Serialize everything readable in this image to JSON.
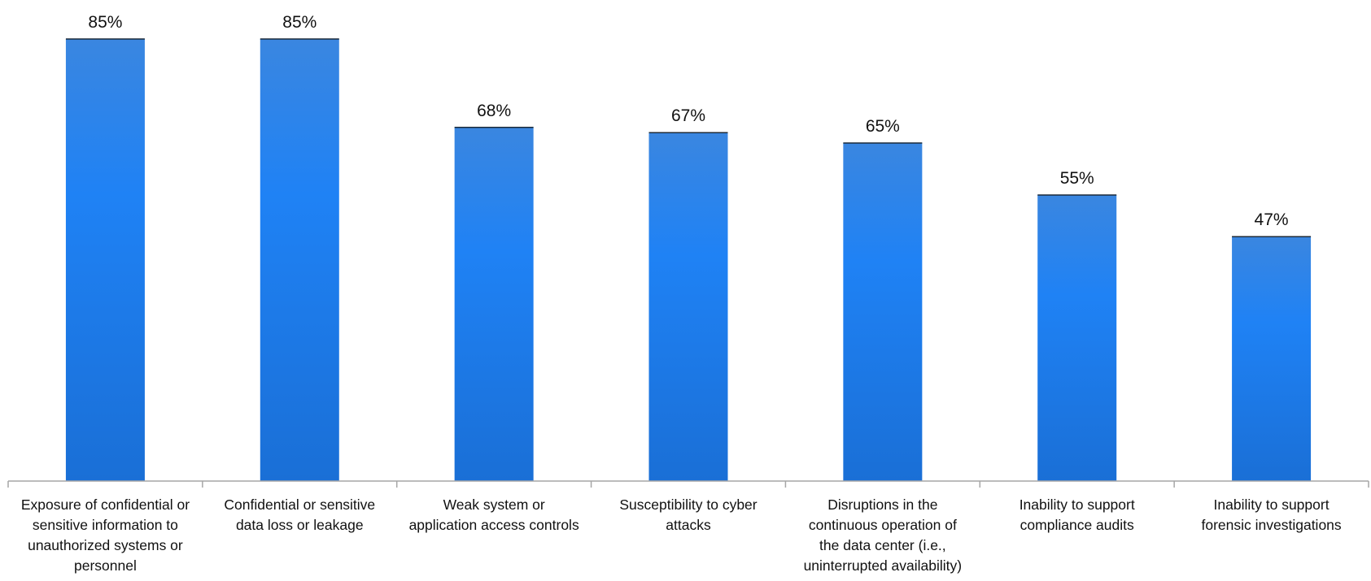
{
  "chart_data": {
    "type": "bar",
    "categories": [
      "Exposure of confidential or sensitive information to unauthorized systems or personnel",
      "Confidential or sensitive data loss or leakage",
      "Weak system or application access controls",
      "Susceptibility to cyber attacks",
      "Disruptions in the continuous operation of the data center (i.e., uninterrupted availability)",
      "Inability to support compliance audits",
      "Inability to support forensic investigations"
    ],
    "category_lines": [
      [
        "Exposure of confidential or",
        "sensitive information to",
        "unauthorized systems or",
        "personnel"
      ],
      [
        "Confidential or sensitive",
        "data loss or leakage"
      ],
      [
        "Weak system or",
        "application access controls"
      ],
      [
        "Susceptibility to cyber",
        "attacks"
      ],
      [
        "Disruptions in the",
        "continuous operation of",
        "the data center (i.e.,",
        "uninterrupted availability)"
      ],
      [
        "Inability to support",
        "compliance audits"
      ],
      [
        "Inability to support",
        "forensic investigations"
      ]
    ],
    "values": [
      85,
      85,
      68,
      67,
      65,
      55,
      47
    ],
    "value_labels": [
      "85%",
      "85%",
      "68%",
      "67%",
      "65%",
      "55%",
      "47%"
    ],
    "ylim": [
      0,
      85
    ],
    "grid": false,
    "legend": "none",
    "colors": {
      "bar_top": "#3a86e0",
      "bar_mid": "#1f82f5",
      "bar_bottom": "#1a6fd6",
      "axis": "#a6a6a6",
      "text": "#111111"
    }
  }
}
